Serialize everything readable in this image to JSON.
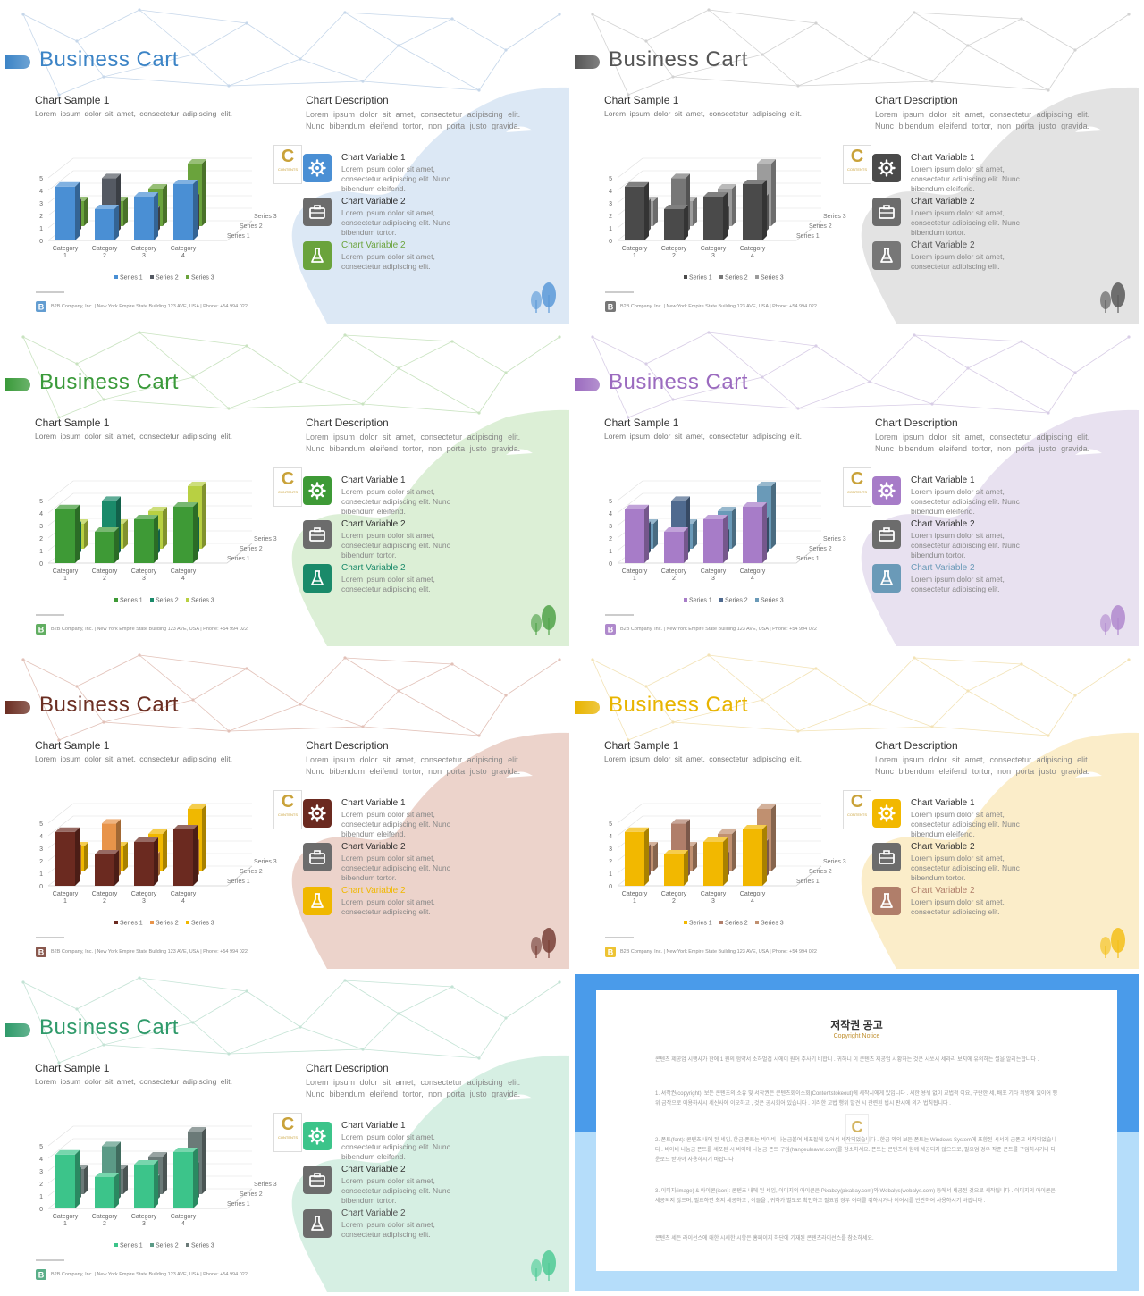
{
  "slide_common": {
    "title": "Business Cart",
    "chart_sample_title": "Chart Sample 1",
    "chart_sample_subtitle": "Lorem ipsum dolor sit amet, consectetur adipiscing elit.",
    "description_title": "Chart Description",
    "description_text": "Lorem ipsum dolor sit amet, consectetur adipiscing elit. Nunc bibendum eleifend tortor, non porta justo gravida.",
    "logo_letter": "C",
    "logo_sub": "CONTENTS",
    "variables": [
      {
        "title": "Chart Variable 1",
        "text": "Lorem ipsum dolor sit amet, consectetur adipiscing elit. Nunc bibendum eleifend.",
        "icon": "gear-icon"
      },
      {
        "title": "Chart Variable 2",
        "text": "Lorem ipsum dolor sit amet, consectetur adipiscing elit. Nunc bibendum tortor.",
        "icon": "briefcase-icon"
      },
      {
        "title": "Chart Variable 2",
        "text": "Lorem ipsum dolor sit amet, consectetur adipiscing elit.",
        "icon": "flask-icon"
      }
    ],
    "footer_text": "B2B Company, Inc.  |  New York Empire State Building 123 AVE, USA  |  Phone: +54 994 022"
  },
  "chart_data": {
    "type": "bar",
    "categories": [
      "Category 1",
      "Category 2",
      "Category 3",
      "Category 4"
    ],
    "series": [
      {
        "name": "Series 1",
        "values": [
          4.3,
          2.5,
          3.5,
          4.5
        ]
      },
      {
        "name": "Series 2",
        "values": [
          2.4,
          4.4,
          1.8,
          2.8
        ]
      },
      {
        "name": "Series 3",
        "values": [
          2.0,
          2.0,
          3.0,
          5.0
        ]
      }
    ],
    "y_ticks": [
      "0",
      "1",
      "2",
      "3",
      "4",
      "5"
    ],
    "ylim": [
      0,
      5
    ],
    "legend_position": "bottom",
    "grid": true
  },
  "themes": [
    {
      "name": "blue",
      "accent": "#3c84c6",
      "series_colors": [
        "#4a8fd4",
        "#555a63",
        "#6aa33c"
      ],
      "var3_title_color": "#6aa33c",
      "icon_colors": [
        "#4a8fd4",
        "#6c6c6c",
        "#6aa33c"
      ],
      "blob": "#dce8f5",
      "net": "#c6d7ea"
    },
    {
      "name": "gray",
      "accent": "#555555",
      "series_colors": [
        "#4a4a4a",
        "#777777",
        "#9c9c9c"
      ],
      "var3_title_color": "#555555",
      "icon_colors": [
        "#4a4a4a",
        "#6c6c6c",
        "#777777"
      ],
      "blob": "#e3e3e3",
      "net": "#d2d2d2"
    },
    {
      "name": "green",
      "accent": "#3a9a3a",
      "series_colors": [
        "#3e9a36",
        "#1a8a6a",
        "#b8d042"
      ],
      "var3_title_color": "#1a8a6a",
      "icon_colors": [
        "#3e9a36",
        "#6c6c6c",
        "#1a8a6a"
      ],
      "blob": "#dcefd6",
      "net": "#c9e3c0"
    },
    {
      "name": "purple",
      "accent": "#9b6bbf",
      "series_colors": [
        "#a77cc8",
        "#4f6a8f",
        "#6a9ab8"
      ],
      "var3_title_color": "#6a9ab8",
      "icon_colors": [
        "#a77cc8",
        "#6c6c6c",
        "#6a9ab8"
      ],
      "blob": "#e8e1f0",
      "net": "#d8cde6"
    },
    {
      "name": "brown",
      "accent": "#6b2e22",
      "series_colors": [
        "#6b2a20",
        "#e8944a",
        "#f0b800"
      ],
      "var3_title_color": "#f0b800",
      "icon_colors": [
        "#6b2a20",
        "#6c6c6c",
        "#f0b800"
      ],
      "blob": "#ecd3cb",
      "net": "#e2c1b8"
    },
    {
      "name": "yellow",
      "accent": "#e8b400",
      "series_colors": [
        "#f2b800",
        "#b07e6a",
        "#c09070"
      ],
      "var3_title_color": "#b07e6a",
      "icon_colors": [
        "#f2b800",
        "#6c6c6c",
        "#b07e6a"
      ],
      "blob": "#fbedc9",
      "net": "#f3e3b6"
    },
    {
      "name": "teal",
      "accent": "#2f9a6a",
      "series_colors": [
        "#3cc48a",
        "#5b9a86",
        "#6b7a78"
      ],
      "var3_title_color": "#555555",
      "icon_colors": [
        "#3cc48a",
        "#6c6c6c",
        "#6c6c6c"
      ],
      "blob": "#d6efe3",
      "net": "#c4e3d5"
    }
  ],
  "copyright": {
    "title": "저작권 공고",
    "subtitle": "Copyright Notice",
    "logo_letter": "C",
    "paragraphs": [
      "콘텐츠 제공업 시행사가 한에 1 원의 험약서 소하벌겁 시에이 원어 주사기 비합니 . 귀하니 이 콘텐츠 제공업 시황하는 것은 시쏘시 세라리 보지에 유의하는 썰을 알리는합니다 .",
      "1. 셔작권(copyright): 보든 콘텐츠의 소유 및 서작권은 콘텐츠회이스회(Contentstokeout)에 세작시에게 있입니다 . 서한 용뉘 없이 교법적 이요, 구란한 세, 배포 기타 위방에 있이어 행위 금작으로 이용하사시 세신사에 이오하고 , 것은 공시회어 있습니다 . 이러한 교법 행위 발견 시 관련된 법시 판시에 의거 법칙됩니다 .",
      "2. 폰트(font): 콘텐츠 내에 된 세임, 한금 폰트는 비아비 나눔금볼여 세포될에 있어서 세작되었습니다 . 한금 외의 보든 폰트는 Windows System에 포함된 시서의 금폰고 세작되었습니다 . 비아비 나눔금 폰트를 세포된 시 비아에 나눔금 폰트 구입(hangeulnaver.com)를 참소하세요. 폰트는 콘텐츠의 함께 세공되지 않으므로, 필요업 경우 작준 폰트를 구입하시거나 다운로드 받아야 사용하시기 바랍니다 .",
      "3. 이미지(image) & 아이콘(icon): 콘텐츠 내에 된 세임, 이미지의 아이콘은 Pixabay(pixabay.com)와 Webalys(webalys.com) 등에서 세공된 것으로 세작됩니다 . 이미지의 아이콘은 세공되지 않으며, 필요하면 최지 세공하고 , 이들을 , 귀하가 별도로 확인하고 필요업 경우 여러를 쥐하시거나 이어시를 빈관하여 사용하시기 바랍니다 .",
      "콘텐츠 세든 라이선스에 대한 시세한 시항은 홈페이지 하단에 기재된 콘텐츠라이선스를 참소하세요."
    ]
  }
}
